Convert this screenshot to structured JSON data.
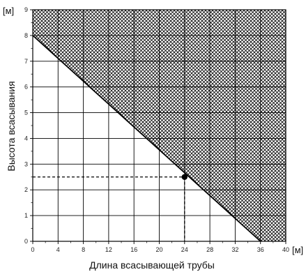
{
  "chart_data": {
    "type": "area",
    "xlabel": "Длина всасывающей трубы",
    "ylabel": "Высота всасывания",
    "x_unit": "[м]",
    "y_unit": "[м]",
    "xlim": [
      0,
      40
    ],
    "ylim": [
      0,
      9
    ],
    "x_ticks": [
      0,
      4,
      8,
      12,
      16,
      20,
      24,
      28,
      32,
      36,
      40
    ],
    "y_ticks": [
      0,
      1,
      2,
      3,
      4,
      5,
      6,
      7,
      8,
      9
    ],
    "grid": true,
    "boundary_line": {
      "x": [
        0,
        36
      ],
      "y": [
        8,
        0
      ]
    },
    "hatched_region": "above boundary line",
    "marked_point": {
      "x": 24,
      "y": 2.5
    },
    "colors": {
      "line": "#000000",
      "grid": "#000000",
      "hatch": "#000000",
      "background": "#ffffff"
    }
  }
}
